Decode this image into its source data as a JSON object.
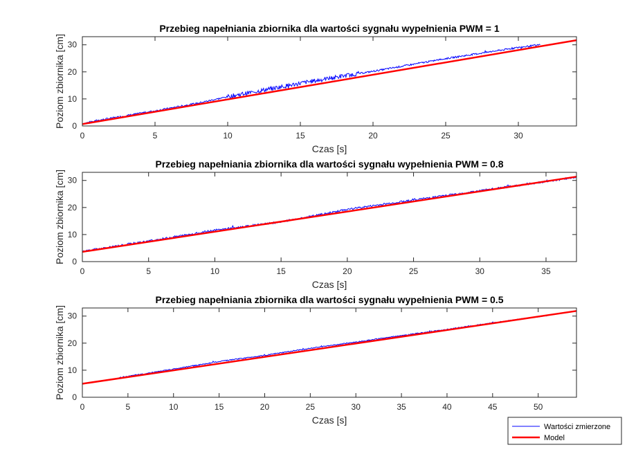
{
  "colors": {
    "measured": "#0000ff",
    "model": "#ff0000",
    "axis": "#262626",
    "background": "#ffffff"
  },
  "legend": {
    "placement": "bottom-right",
    "items": [
      "Wartości zmierzone",
      "Model"
    ]
  },
  "chart_data": [
    {
      "type": "line",
      "title": "Przebieg napełniania zbiornika dla wartości sygnału wypełnienia PWM = 1",
      "xlabel": "Czas [s]",
      "ylabel": "Poziom zbiornika [cm]",
      "xlim": [
        0,
        34
      ],
      "ylim": [
        0,
        33
      ],
      "xticks": [
        0,
        5,
        10,
        15,
        20,
        25,
        30
      ],
      "yticks": [
        0,
        10,
        20,
        30
      ],
      "grid": false,
      "series": [
        {
          "name": "Wartości zmierzone",
          "x": [
            0,
            1,
            3,
            5,
            8,
            10,
            12,
            15,
            18,
            20,
            25,
            30,
            31.5
          ],
          "y": [
            0.8,
            2,
            3.8,
            5.6,
            8.5,
            10.8,
            12.8,
            15.8,
            18.5,
            20.2,
            24.9,
            29.0,
            30.0
          ]
        },
        {
          "name": "Model",
          "x": [
            0,
            34
          ],
          "y": [
            0.7,
            31.7
          ]
        }
      ]
    },
    {
      "type": "line",
      "title": "Przebieg napełniania zbiornika dla wartości sygnału wypełnienia PWM = 0.8",
      "xlabel": "Czas [s]",
      "ylabel": "Poziom zbiornika [cm]",
      "xlim": [
        0,
        37.3
      ],
      "ylim": [
        0,
        33
      ],
      "xticks": [
        0,
        5,
        10,
        15,
        20,
        25,
        30,
        35
      ],
      "yticks": [
        0,
        10,
        20,
        30
      ],
      "grid": false,
      "series": [
        {
          "name": "Wartości zmierzone",
          "x": [
            0,
            5,
            10,
            15,
            18,
            20,
            25,
            30,
            35,
            37.3
          ],
          "y": [
            3.8,
            7.6,
            11.6,
            14.7,
            17.4,
            19.3,
            22.8,
            26.2,
            29.6,
            31.2
          ]
        },
        {
          "name": "Model",
          "x": [
            0,
            37.3
          ],
          "y": [
            3.6,
            31.4
          ]
        }
      ]
    },
    {
      "type": "line",
      "title": "Przebieg napełniania zbiornika dla wartości sygnału wypełnienia PWM = 0.5",
      "xlabel": "Czas [s]",
      "ylabel": "Poziom zbiornika [cm]",
      "xlim": [
        0,
        54.2
      ],
      "ylim": [
        0,
        33
      ],
      "xticks": [
        0,
        5,
        10,
        15,
        20,
        25,
        30,
        35,
        40,
        45,
        50
      ],
      "yticks": [
        0,
        10,
        20,
        30
      ],
      "grid": false,
      "series": [
        {
          "name": "Wartości zmierzone",
          "x": [
            4,
            10,
            15,
            20,
            25,
            30,
            35,
            40,
            45,
            50,
            51
          ],
          "y": [
            7.2,
            10.4,
            13.2,
            15.5,
            18.1,
            20.4,
            22.8,
            25.1,
            27.5,
            29.8,
            30.2
          ]
        },
        {
          "name": "Model",
          "x": [
            0,
            54.2
          ],
          "y": [
            5.0,
            31.9
          ]
        }
      ]
    }
  ]
}
